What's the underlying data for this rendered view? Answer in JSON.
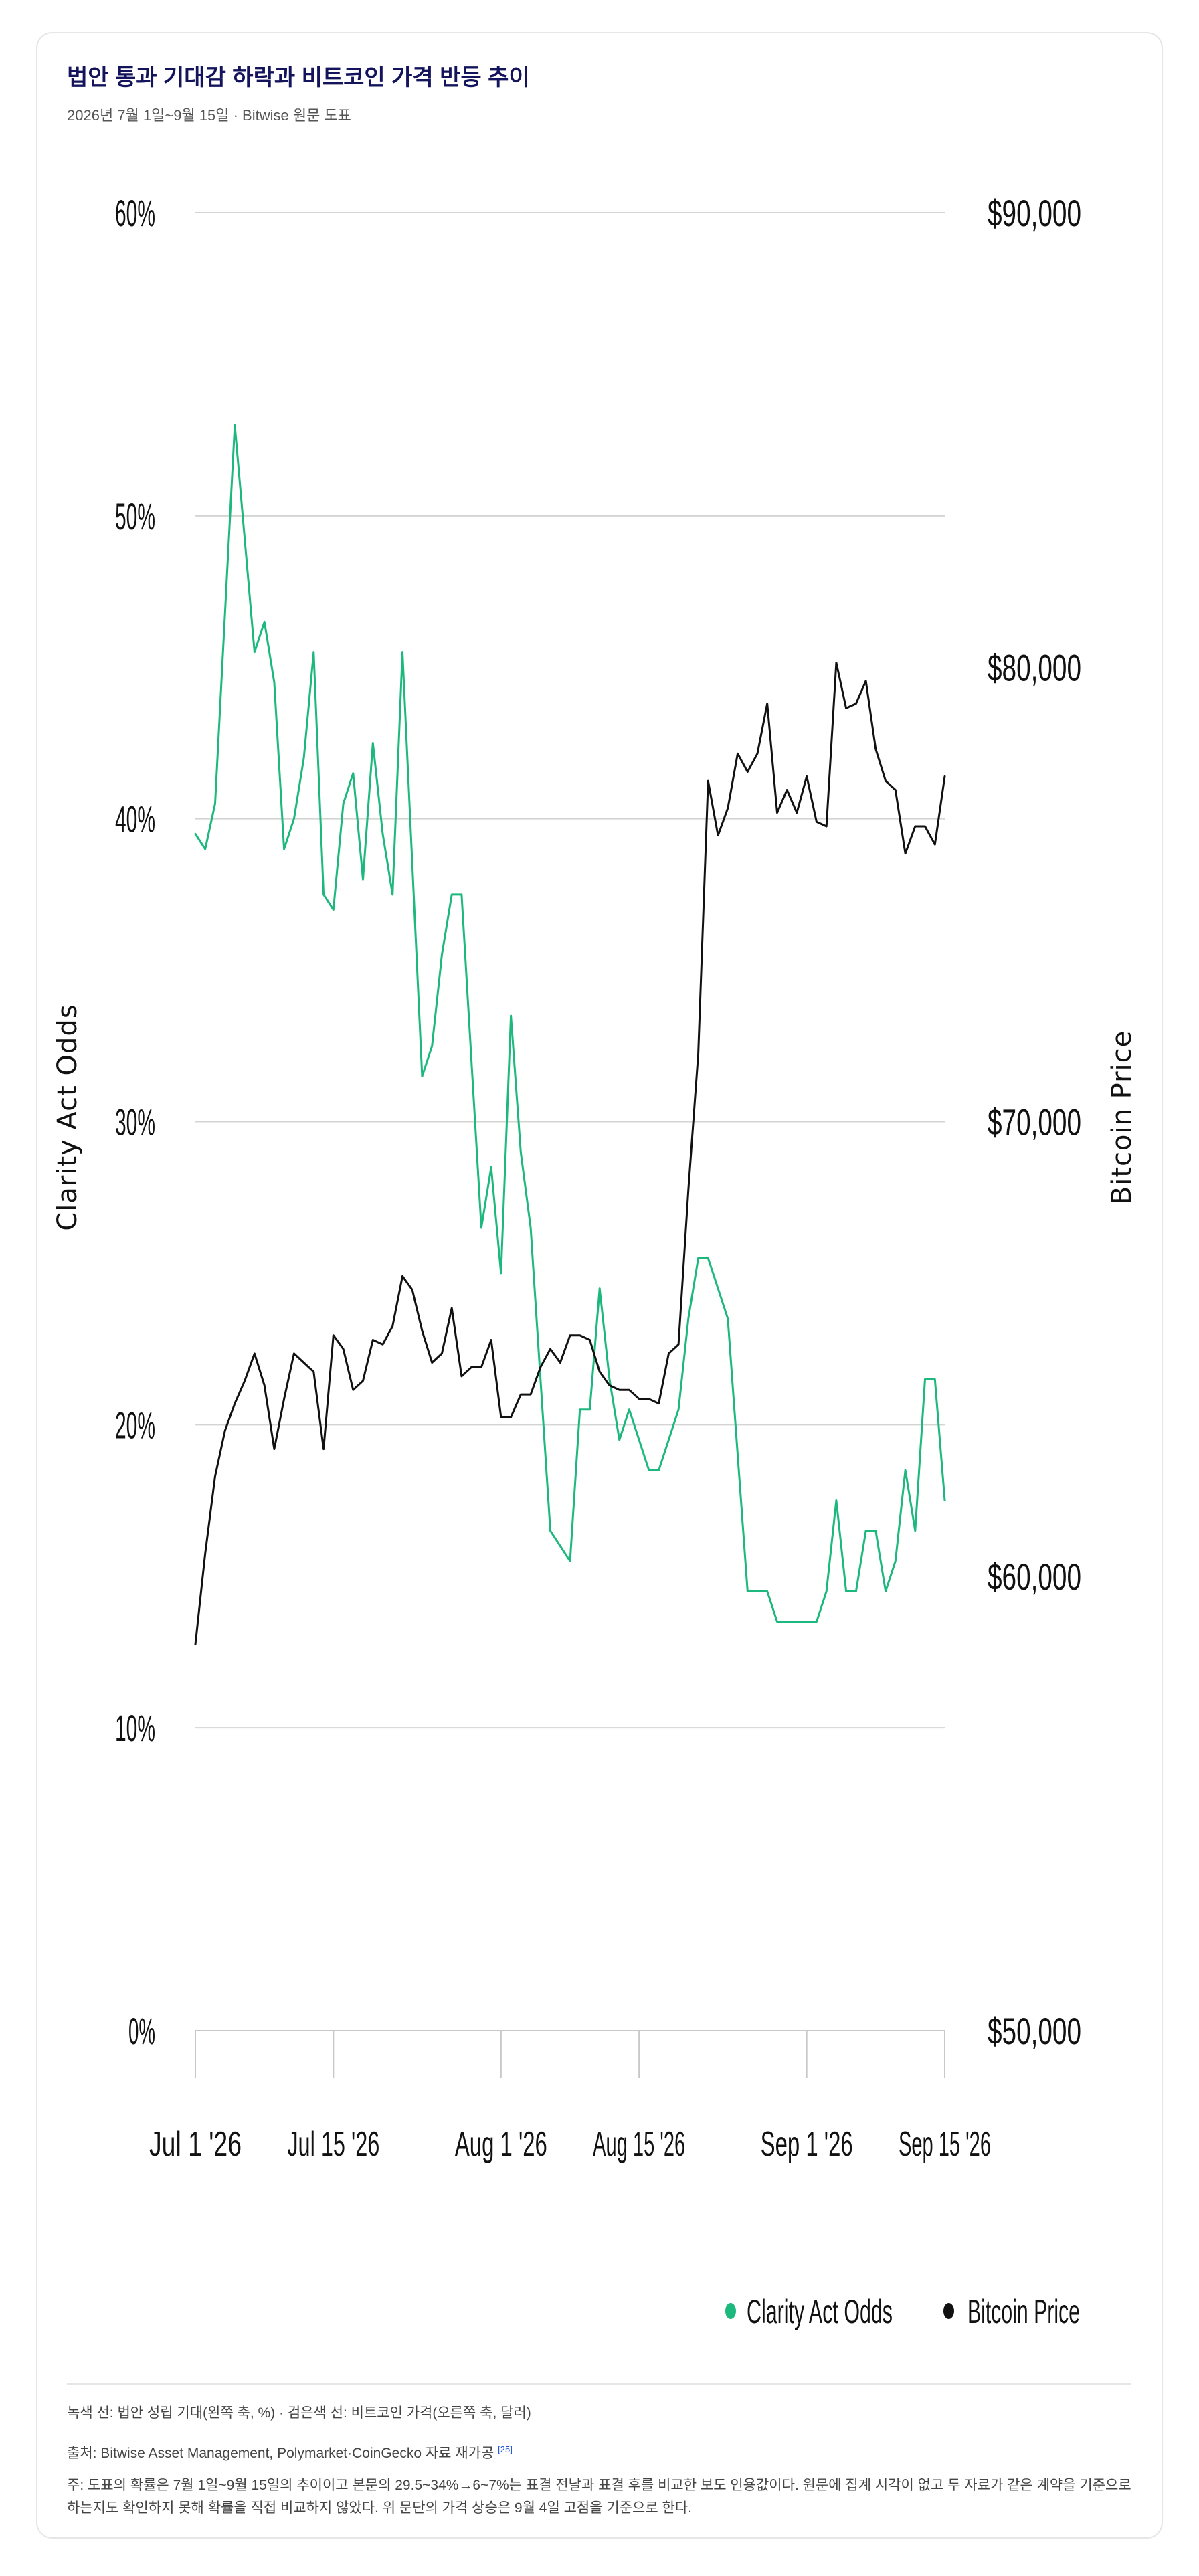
{
  "header": {
    "title": "법안 통과 기대감 하락과 비트코인 가격 반등 추이",
    "subtitle": "2026년 7월 1일~9월 15일 · Bitwise 원문 도표"
  },
  "chart_data": {
    "type": "line",
    "title": "법안 통과 기대감 하락과 비트코인 가격 반등 추이",
    "subtitle": "2026년 7월 1일~9월 15일 · Bitwise 원문 도표",
    "x_tick_labels": [
      "Jul 1 '26",
      "Jul 15 '26",
      "Aug 1 '26",
      "Aug 15 '26",
      "Sep 1 '26",
      "Sep 15 '26"
    ],
    "x_tick_days": [
      0,
      14,
      31,
      45,
      62,
      76
    ],
    "x_range_days": [
      0,
      76
    ],
    "y_left": {
      "label": "Clarity Act Odds",
      "ticks": [
        "0%",
        "10%",
        "20%",
        "30%",
        "40%",
        "50%",
        "60%"
      ],
      "range": [
        0,
        60
      ],
      "unit": "%"
    },
    "y_right": {
      "label": "Bitcoin Price",
      "ticks": [
        "$50,000",
        "$60,000",
        "$70,000",
        "$80,000",
        "$90,000"
      ],
      "range": [
        50000,
        90000
      ],
      "unit": "USD"
    },
    "grid": "horizontal",
    "legend_position": "bottom-right",
    "series": [
      {
        "name": "Clarity Act Odds",
        "axis": "left",
        "color": "#1db87e",
        "points": [
          [
            0,
            39.5
          ],
          [
            1,
            39
          ],
          [
            2,
            40.5
          ],
          [
            4,
            53
          ],
          [
            6,
            45.5
          ],
          [
            7,
            46.5
          ],
          [
            8,
            44.5
          ],
          [
            9,
            39
          ],
          [
            10,
            40
          ],
          [
            11,
            42
          ],
          [
            12,
            45.5
          ],
          [
            13,
            37.5
          ],
          [
            14,
            37
          ],
          [
            15,
            40.5
          ],
          [
            16,
            41.5
          ],
          [
            17,
            38
          ],
          [
            18,
            42.5
          ],
          [
            19,
            39.5
          ],
          [
            20,
            37.5
          ],
          [
            21,
            45.5
          ],
          [
            23,
            31.5
          ],
          [
            24,
            32.5
          ],
          [
            25,
            35.5
          ],
          [
            26,
            37.5
          ],
          [
            27,
            37.5
          ],
          [
            29,
            26.5
          ],
          [
            30,
            28.5
          ],
          [
            31,
            25
          ],
          [
            32,
            33.5
          ],
          [
            33,
            29
          ],
          [
            34,
            26.5
          ],
          [
            36,
            16.5
          ],
          [
            38,
            15.5
          ],
          [
            39,
            20.5
          ],
          [
            40,
            20.5
          ],
          [
            41,
            24.5
          ],
          [
            42,
            21.5
          ],
          [
            43,
            19.5
          ],
          [
            44,
            20.5
          ],
          [
            46,
            18.5
          ],
          [
            47,
            18.5
          ],
          [
            49,
            20.5
          ],
          [
            50,
            23.5
          ],
          [
            51,
            25.5
          ],
          [
            52,
            25.5
          ],
          [
            54,
            23.5
          ],
          [
            56,
            14.5
          ],
          [
            58,
            14.5
          ],
          [
            59,
            13.5
          ],
          [
            63,
            13.5
          ],
          [
            64,
            14.5
          ],
          [
            65,
            17.5
          ],
          [
            66,
            14.5
          ],
          [
            67,
            14.5
          ],
          [
            68,
            16.5
          ],
          [
            69,
            16.5
          ],
          [
            70,
            14.5
          ],
          [
            71,
            15.5
          ],
          [
            72,
            18.5
          ],
          [
            73,
            16.5
          ],
          [
            74,
            21.5
          ],
          [
            75,
            21.5
          ],
          [
            76,
            17.5
          ]
        ]
      },
      {
        "name": "Bitcoin Price",
        "axis": "right",
        "color": "#111111",
        "points": [
          [
            0,
            58500
          ],
          [
            1,
            60500
          ],
          [
            2,
            62200
          ],
          [
            3,
            63200
          ],
          [
            4,
            63800
          ],
          [
            5,
            64300
          ],
          [
            6,
            64900
          ],
          [
            7,
            64200
          ],
          [
            8,
            62800
          ],
          [
            9,
            63900
          ],
          [
            10,
            64900
          ],
          [
            11,
            64700
          ],
          [
            12,
            64500
          ],
          [
            13,
            62800
          ],
          [
            14,
            65300
          ],
          [
            15,
            65000
          ],
          [
            16,
            64100
          ],
          [
            17,
            64300
          ],
          [
            18,
            65200
          ],
          [
            19,
            65100
          ],
          [
            20,
            65500
          ],
          [
            21,
            66600
          ],
          [
            22,
            66300
          ],
          [
            23,
            65400
          ],
          [
            24,
            64700
          ],
          [
            25,
            64900
          ],
          [
            26,
            65900
          ],
          [
            27,
            64400
          ],
          [
            28,
            64600
          ],
          [
            29,
            64600
          ],
          [
            30,
            65200
          ],
          [
            31,
            63500
          ],
          [
            32,
            63500
          ],
          [
            33,
            64000
          ],
          [
            34,
            64000
          ],
          [
            35,
            64600
          ],
          [
            36,
            65000
          ],
          [
            37,
            64700
          ],
          [
            38,
            65300
          ],
          [
            39,
            65300
          ],
          [
            40,
            65200
          ],
          [
            41,
            64500
          ],
          [
            42,
            64200
          ],
          [
            43,
            64100
          ],
          [
            44,
            64100
          ],
          [
            45,
            63900
          ],
          [
            46,
            63900
          ],
          [
            47,
            63800
          ],
          [
            48,
            64900
          ],
          [
            49,
            65100
          ],
          [
            50,
            68500
          ],
          [
            51,
            71500
          ],
          [
            52,
            77500
          ],
          [
            53,
            76300
          ],
          [
            54,
            76900
          ],
          [
            55,
            78100
          ],
          [
            56,
            77700
          ],
          [
            57,
            78100
          ],
          [
            58,
            79200
          ],
          [
            59,
            76800
          ],
          [
            60,
            77300
          ],
          [
            61,
            76800
          ],
          [
            62,
            77600
          ],
          [
            63,
            76600
          ],
          [
            64,
            76500
          ],
          [
            65,
            80100
          ],
          [
            66,
            79100
          ],
          [
            67,
            79200
          ],
          [
            68,
            79700
          ],
          [
            69,
            78200
          ],
          [
            70,
            77500
          ],
          [
            71,
            77300
          ],
          [
            72,
            75900
          ],
          [
            73,
            76500
          ],
          [
            74,
            76500
          ],
          [
            75,
            76100
          ],
          [
            76,
            77600
          ]
        ]
      }
    ]
  },
  "legend": {
    "items": [
      {
        "label": "Clarity Act Odds",
        "color": "#1db87e"
      },
      {
        "label": "Bitcoin Price",
        "color": "#111111"
      }
    ]
  },
  "footer": {
    "note_lines": "녹색 선: 법안 성립 기대(왼쪽 축, %) · 검은색 선: 비트코인 가격(오른쪽 축, 달러)",
    "source": "출처: Bitwise Asset Management, Polymarket·CoinGecko 자료 재가공",
    "source_ref": "[25]",
    "caveat": "주: 도표의 확률은 7월 1일~9월 15일의 추이이고 본문의 29.5~34%→6~7%는 표결 전날과 표결 후를 비교한 보도 인용값이다. 원문에 집계 시각이 없고 두 자료가 같은 계약을 기준으로 하는지도 확인하지 못해 확률을 직접 비교하지 않았다. 위 문단의 가격 상승은 9월 4일 고점을 기준으로 한다."
  }
}
